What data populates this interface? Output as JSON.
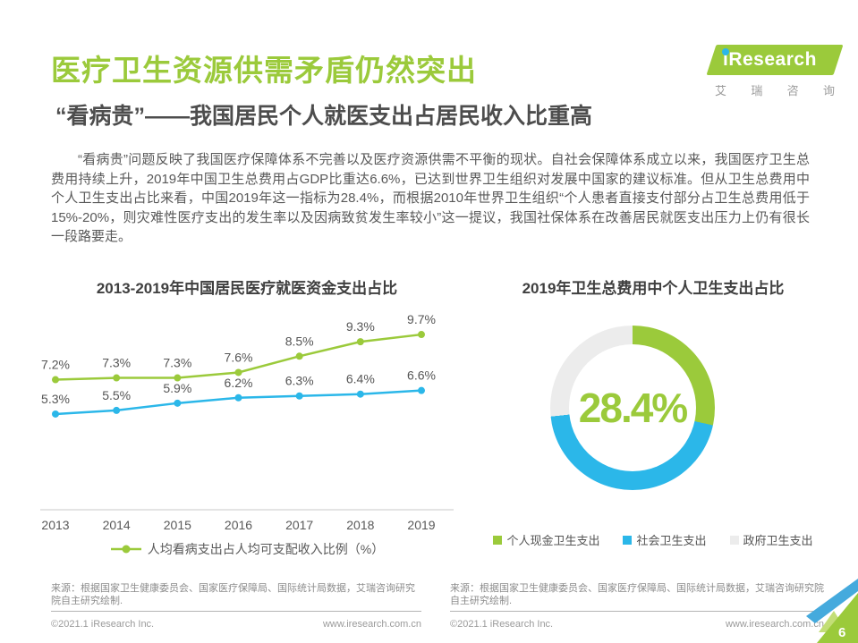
{
  "header": {
    "title": "医疗卫生资源供需矛盾仍然突出",
    "subtitle": "“看病贵”——我国居民个人就医支出占居民收入比重高"
  },
  "logo": {
    "brand": "iResearch",
    "chinese": "艾瑞咨询"
  },
  "intro": {
    "text": "“看病贵”问题反映了我国医疗保障体系不完善以及医疗资源供需不平衡的现状。自社会保障体系成立以来，我国医疗卫生总费用持续上升，2019年中国卫生总费用占GDP比重达6.6%，已达到世界卫生组织对发展中国家的建议标准。但从卫生总费用中个人卫生支出占比来看，中国2019年这一指标为28.4%，而根据2010年世界卫生组织“个人患者直接支付部分占卫生总费用低于15%-20%，则灾难性医疗支出的发生率以及因病致贫发生率较小”这一提议，我国社保体系在改善居民就医支出压力上仍有很长一段路要走。"
  },
  "colors": {
    "green": "#9BCA3B",
    "blue": "#2BB7E9",
    "gray_segment": "#ECECEC",
    "corner_blue": "#45AADD",
    "corner_light_green": "#C3DE77"
  },
  "chart_data": [
    {
      "type": "line",
      "title": "2013-2019年中国居民医疗就医资金支出占比",
      "categories": [
        "2013",
        "2014",
        "2015",
        "2016",
        "2017",
        "2018",
        "2019"
      ],
      "series": [
        {
          "color": "#9BCA3B",
          "values": [
            7.2,
            7.3,
            7.3,
            7.6,
            8.5,
            9.3,
            9.7
          ]
        },
        {
          "color": "#2BB7E9",
          "values": [
            5.3,
            5.5,
            5.9,
            6.2,
            6.3,
            6.4,
            6.6
          ]
        }
      ],
      "legend_label": "人均看病支出占人均可支配收入比例（%）",
      "unit": "%",
      "ylim": [
        0,
        11.5
      ],
      "grid": false,
      "legend_position": "bottom"
    },
    {
      "type": "pie",
      "donut": true,
      "title": "2019年卫生总费用中个人卫生支出占比",
      "center_label": "28.4%",
      "segments": [
        {
          "label": "个人现金卫生支出",
          "value": 28.4,
          "color": "#9BCA3B"
        },
        {
          "label": "社会卫生支出",
          "value": 44.9,
          "color": "#2BB7E9"
        },
        {
          "label": "政府卫生支出",
          "value": 26.7,
          "color": "#ECECEC"
        }
      ],
      "legend_position": "bottom"
    }
  ],
  "footer": {
    "source_left": "来源：根据国家卫生健康委员会、国家医疗保障局、国际统计局数据，艾瑞咨询研究院自主研究绘制.",
    "source_right": "来源：根据国家卫生健康委员会、国家医疗保障局、国际统计局数据，艾瑞咨询研究院自主研究绘制.",
    "copyright": "©2021.1 iResearch Inc.",
    "website": "www.iresearch.com.cn",
    "page_number": "6"
  }
}
